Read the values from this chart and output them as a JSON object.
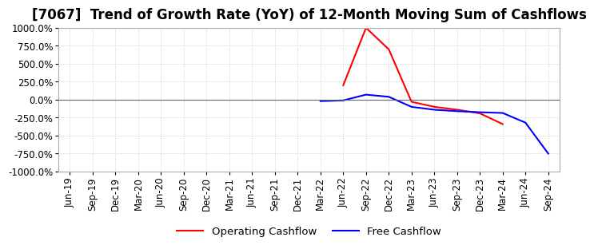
{
  "title": "[7067]  Trend of Growth Rate (YoY) of 12-Month Moving Sum of Cashflows",
  "ylim": [
    -1000,
    1000
  ],
  "yticks": [
    -1000,
    -750,
    -500,
    -250,
    0,
    250,
    500,
    750,
    1000
  ],
  "background_color": "#ffffff",
  "plot_bg_color": "#ffffff",
  "grid_color": "#cccccc",
  "operating_color": "#ff0000",
  "free_color": "#0000ff",
  "x_dates": [
    "Jun-19",
    "Sep-19",
    "Dec-19",
    "Mar-20",
    "Jun-20",
    "Sep-20",
    "Dec-20",
    "Mar-21",
    "Jun-21",
    "Sep-21",
    "Dec-21",
    "Mar-22",
    "Jun-22",
    "Sep-22",
    "Dec-22",
    "Mar-23",
    "Jun-23",
    "Sep-23",
    "Dec-23",
    "Mar-24",
    "Jun-24",
    "Sep-24"
  ],
  "operating_cashflow": [
    null,
    null,
    null,
    null,
    null,
    null,
    null,
    null,
    null,
    null,
    null,
    null,
    200,
    1000,
    700,
    -30,
    -100,
    -140,
    -190,
    -340,
    null,
    null
  ],
  "free_cashflow": [
    null,
    null,
    null,
    null,
    null,
    null,
    null,
    null,
    null,
    null,
    null,
    -20,
    -10,
    70,
    40,
    -100,
    -140,
    -160,
    -175,
    -185,
    -320,
    -750
  ],
  "legend_labels": [
    "Operating Cashflow",
    "Free Cashflow"
  ],
  "title_fontsize": 12,
  "tick_fontsize": 8.5
}
